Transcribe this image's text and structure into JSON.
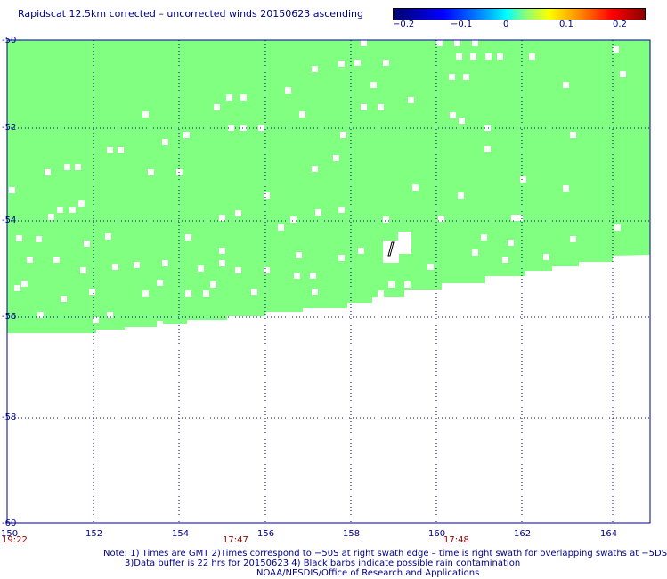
{
  "title": "Rapidscat 12.5km corrected – uncorrected winds 20150623 ascending",
  "colorbar": {
    "ticks": [
      "−0.2",
      "−0.1",
      "0",
      "0.1",
      "0.2"
    ],
    "colors": [
      "#00006e",
      "#0000ff",
      "#00ffff",
      "#80ff80",
      "#ffff00",
      "#ff0000",
      "#8b0000"
    ]
  },
  "map": {
    "lat_labels": [
      "-50",
      "-52",
      "-54",
      "-56",
      "-58",
      "-60"
    ],
    "lon_labels": [
      "150",
      "152",
      "154",
      "156",
      "158",
      "160",
      "162",
      "164"
    ],
    "swath_color": "#80ff80",
    "missing_color": "#ffffff",
    "grid_color": "#00008b"
  },
  "times": [
    "19:22",
    "17:47",
    "17:48"
  ],
  "notes": {
    "line1": "Note: 1) Times are GMT 2)Times correspond to −50S at right swath edge – time is right swath for overlapping swaths at −5DS",
    "line2": "3)Data buffer is 22 hrs for 20150623 4) Black barbs indicate possible rain contamination",
    "line3": "NOAA/NESDIS/Office of Research and Applications"
  }
}
